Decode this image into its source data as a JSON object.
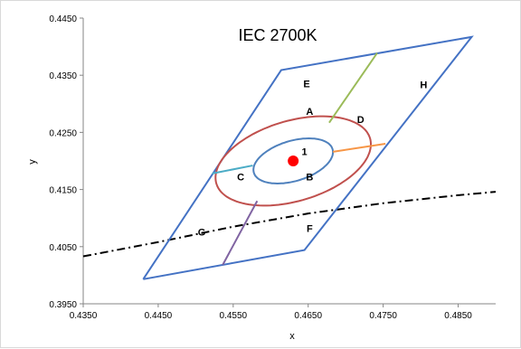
{
  "chart_data": {
    "type": "scatter",
    "title": "IEC 2700K",
    "xlabel": "x",
    "ylabel": "y",
    "xlim": [
      0.435,
      0.49
    ],
    "ylim": [
      0.395,
      0.445
    ],
    "xticks": [
      "0.4350",
      "0.4450",
      "0.4550",
      "0.4650",
      "0.4750",
      "0.4850"
    ],
    "yticks": [
      "0.3950",
      "0.4050",
      "0.4150",
      "0.4250",
      "0.4350",
      "0.4450"
    ],
    "grid": false,
    "legend": "none",
    "colors": {
      "quadrangle": "#4472c4",
      "outer_ellipse": "#c0504d",
      "inner_ellipse": "#4f81bd",
      "center_point": "#ff0000",
      "planckian_locus": "#000000",
      "line_to_upper_right": "#9bbb59",
      "line_to_right": "#f79646",
      "line_to_left": "#4bacc6",
      "line_to_lower_left": "#8064a2"
    },
    "quadrangle": [
      [
        0.443,
        0.3993
      ],
      [
        0.4614,
        0.4359
      ],
      [
        0.4868,
        0.4417
      ],
      [
        0.4645,
        0.4044
      ],
      [
        0.443,
        0.3993
      ]
    ],
    "center_point": {
      "x": 0.463,
      "y": 0.42
    },
    "outer_ellipse": {
      "cx": 0.463,
      "cy": 0.42,
      "a": 0.0113,
      "b": 0.0068,
      "angle_deg": 30
    },
    "inner_ellipse": {
      "cx": 0.463,
      "cy": 0.42,
      "a": 0.0058,
      "b": 0.0034,
      "angle_deg": 30
    },
    "planckian_locus": [
      [
        0.435,
        0.4033
      ],
      [
        0.445,
        0.4058
      ],
      [
        0.455,
        0.4085
      ],
      [
        0.465,
        0.4108
      ],
      [
        0.475,
        0.4126
      ],
      [
        0.485,
        0.414
      ],
      [
        0.49,
        0.4146
      ]
    ],
    "segments": [
      {
        "color_key": "line_to_upper_right",
        "points": [
          [
            0.4678,
            0.4267
          ],
          [
            0.4742,
            0.4389
          ]
        ]
      },
      {
        "color_key": "line_to_right",
        "points": [
          [
            0.4683,
            0.4216
          ],
          [
            0.4753,
            0.423
          ]
        ]
      },
      {
        "color_key": "line_to_left",
        "points": [
          [
            0.4576,
            0.4192
          ],
          [
            0.4522,
            0.4178
          ]
        ]
      },
      {
        "color_key": "line_to_lower_left",
        "points": [
          [
            0.4582,
            0.413
          ],
          [
            0.4536,
            0.4018
          ]
        ]
      }
    ],
    "region_labels": [
      {
        "text": "1",
        "x": 0.4645,
        "y": 0.4217
      },
      {
        "text": "A",
        "x": 0.4652,
        "y": 0.4287
      },
      {
        "text": "B",
        "x": 0.4652,
        "y": 0.4172
      },
      {
        "text": "C",
        "x": 0.456,
        "y": 0.4172
      },
      {
        "text": "D",
        "x": 0.472,
        "y": 0.4273
      },
      {
        "text": "E",
        "x": 0.4648,
        "y": 0.4335
      },
      {
        "text": "F",
        "x": 0.4652,
        "y": 0.4082
      },
      {
        "text": "G",
        "x": 0.4508,
        "y": 0.4076
      },
      {
        "text": "H",
        "x": 0.4804,
        "y": 0.4334
      }
    ]
  }
}
